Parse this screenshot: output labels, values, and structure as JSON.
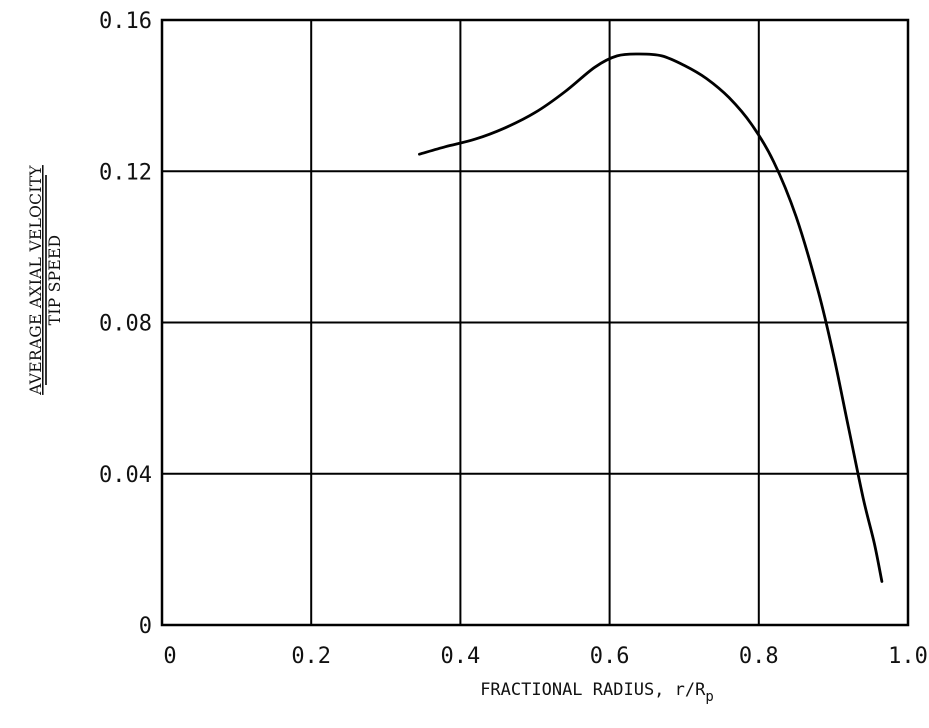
{
  "chart_data": {
    "type": "line",
    "title": "",
    "xlabel": "FRACTIONAL RADIUS, r/R",
    "xlabel_subscript": "p",
    "ylabel_numerator": "AVERAGE AXIAL VELOCITY",
    "ylabel_denominator": "TIP SPEED",
    "xlim": [
      0,
      1.0
    ],
    "ylim": [
      0,
      0.16
    ],
    "xticks": [
      0,
      0.2,
      0.4,
      0.6,
      0.8,
      1.0
    ],
    "xtick_labels": [
      "0",
      "0.2",
      "0.4",
      "0.6",
      "0.8",
      "1.0"
    ],
    "yticks": [
      0,
      0.04,
      0.08,
      0.12,
      0.16
    ],
    "ytick_labels": [
      "0",
      "0.04",
      "0.08",
      "0.12",
      "0.16"
    ],
    "grid": true,
    "series": [
      {
        "x": [
          0.345,
          0.38,
          0.42,
          0.46,
          0.5,
          0.54,
          0.58,
          0.61,
          0.64,
          0.67,
          0.7,
          0.73,
          0.76,
          0.79,
          0.82,
          0.85,
          0.88,
          0.9,
          0.92,
          0.94,
          0.955,
          0.965
        ],
        "y": [
          0.1245,
          0.1265,
          0.1285,
          0.1315,
          0.1355,
          0.141,
          0.1475,
          0.1505,
          0.151,
          0.1505,
          0.148,
          0.1445,
          0.1395,
          0.1325,
          0.1225,
          0.108,
          0.088,
          0.0715,
          0.0525,
          0.0335,
          0.0215,
          0.0115
        ]
      }
    ]
  }
}
